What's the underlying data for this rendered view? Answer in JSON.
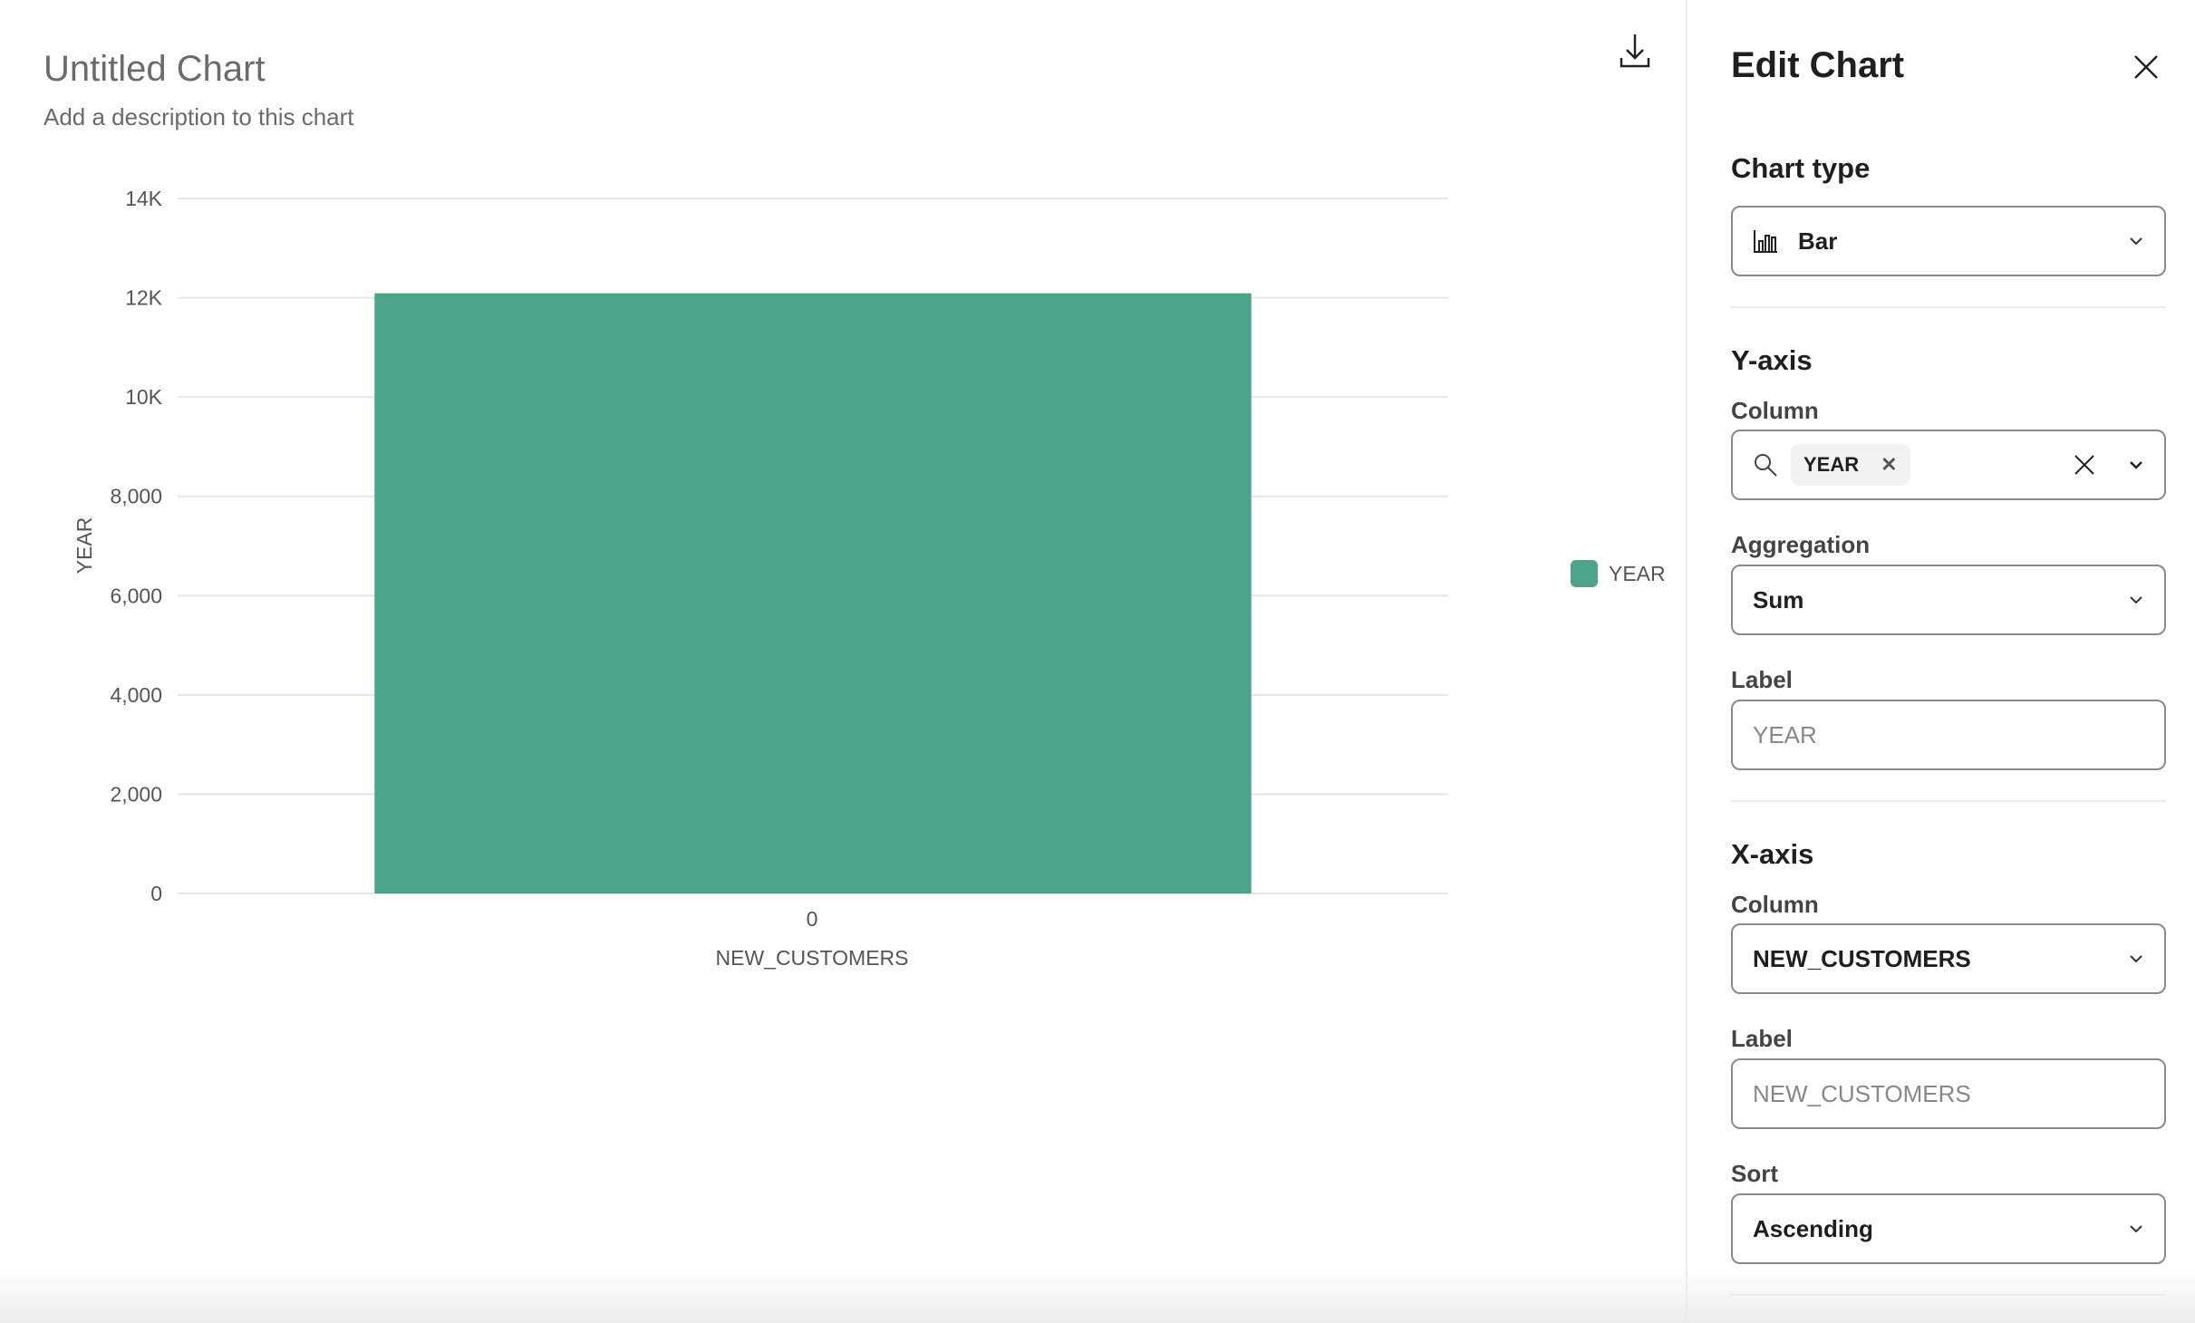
{
  "chart_header": {
    "title": "Untitled Chart",
    "description": "Add a description to this chart"
  },
  "chart_data": {
    "type": "bar",
    "categories": [
      "0"
    ],
    "series": [
      {
        "name": "YEAR",
        "values": [
          12090
        ]
      }
    ],
    "xlabel": "NEW_CUSTOMERS",
    "ylabel": "YEAR",
    "ylim": [
      0,
      14000
    ],
    "yticks": [
      0,
      2000,
      4000,
      6000,
      8000,
      10000,
      12000,
      14000
    ],
    "ytick_labels": [
      "0",
      "2,000",
      "4,000",
      "6,000",
      "8,000",
      "10K",
      "12K",
      "14K"
    ],
    "grid": true,
    "legend": "right",
    "color": "#4ca48a"
  },
  "panel": {
    "title": "Edit Chart",
    "chart_type": {
      "heading": "Chart type",
      "value": "Bar",
      "icon": "bar-chart-icon"
    },
    "y_axis": {
      "heading": "Y-axis",
      "column_label": "Column",
      "column_chip": "YEAR",
      "aggregation_label": "Aggregation",
      "aggregation": "Sum",
      "label_label": "Label",
      "label_placeholder": "YEAR"
    },
    "x_axis": {
      "heading": "X-axis",
      "column_label": "Column",
      "column": "NEW_CUSTOMERS",
      "label_label": "Label",
      "label_placeholder": "NEW_CUSTOMERS",
      "sort_label": "Sort",
      "sort": "Ascending"
    }
  }
}
